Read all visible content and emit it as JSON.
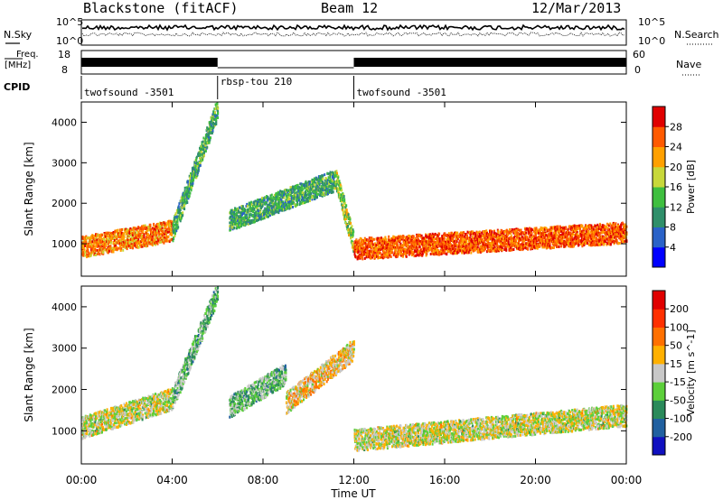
{
  "header": {
    "station": "Blackstone (fitACF)",
    "beam": "Beam 12",
    "date": "12/Mar/2013"
  },
  "strip_labels": {
    "nsky": "N.Sky",
    "nsearch": "N.Search",
    "freq_line1": "Freq.",
    "freq_line2": "[MHz]",
    "nave": "Nave",
    "cpid": "CPID",
    "noise_ticks_left": [
      "10^5",
      "10^0"
    ],
    "noise_ticks_right": [
      "10^5",
      "10^0"
    ],
    "freq_ticks": [
      "18",
      "8"
    ],
    "nave_ticks": [
      "60",
      "0"
    ]
  },
  "cpid_segments": [
    {
      "label": "twofsound -3501",
      "start_hour": 0,
      "end_hour": 6
    },
    {
      "label": "rbsp-tou 210",
      "start_hour": 6,
      "end_hour": 12
    },
    {
      "label": "twofsound -3501",
      "start_hour": 12,
      "end_hour": 24
    }
  ],
  "chart_data": [
    {
      "type": "heatmap",
      "title": "Power",
      "xlabel": "Time UT",
      "ylabel": "Slant Range [km]",
      "xlim": [
        0,
        24
      ],
      "ylim": [
        200,
        4500
      ],
      "x_ticks": [
        "00:00",
        "04:00",
        "08:00",
        "12:00",
        "16:00",
        "20:00",
        "00:00"
      ],
      "y_ticks": [
        "1000",
        "2000",
        "3000",
        "4000"
      ],
      "colorbar": {
        "label": "Power [dB]",
        "ticks": [
          "4",
          "8",
          "12",
          "16",
          "20",
          "24",
          "28"
        ],
        "range": [
          0,
          32
        ],
        "colors": [
          "#0000ff",
          "#2a62c8",
          "#2f8f6a",
          "#3fbf3f",
          "#c8d83a",
          "#ffa000",
          "#ff5a00",
          "#e00000"
        ]
      },
      "echo_bands": [
        {
          "x_start": 0,
          "x_end": 4,
          "y_from": 950,
          "y_to": 1350,
          "value": 24
        },
        {
          "x_start": 4,
          "x_end": 6,
          "y_from": 1350,
          "y_to": 4400,
          "value": 12
        },
        {
          "x_start": 6.5,
          "x_end": 11.2,
          "y_from": 1600,
          "y_to": 2600,
          "value": 12
        },
        {
          "x_start": 11.2,
          "x_end": 12,
          "y_from": 2600,
          "y_to": 1000,
          "value": 16
        },
        {
          "x_start": 12,
          "x_end": 24,
          "y_from": 900,
          "y_to": 1300,
          "value": 26
        }
      ]
    },
    {
      "type": "heatmap",
      "title": "Velocity",
      "xlabel": "Time UT",
      "ylabel": "Slant Range [km]",
      "xlim": [
        0,
        24
      ],
      "ylim": [
        200,
        4500
      ],
      "x_ticks": [
        "00:00",
        "04:00",
        "08:00",
        "12:00",
        "16:00",
        "20:00",
        "00:00"
      ],
      "y_ticks": [
        "1000",
        "2000",
        "3000",
        "4000"
      ],
      "colorbar": {
        "label": "Velocity [m s^-1]",
        "ticks": [
          "200",
          "100",
          "50",
          "15",
          "-15",
          "-50",
          "-100",
          "-200"
        ],
        "range": [
          -250,
          250
        ],
        "colors": [
          "#1010c0",
          "#2060a0",
          "#2a8a5a",
          "#5ccf3a",
          "#c8c8c8",
          "#ffb000",
          "#ff7000",
          "#ff3000",
          "#e00000"
        ]
      },
      "echo_bands": [
        {
          "x_start": 0,
          "x_end": 4,
          "y_from": 1100,
          "y_to": 1800,
          "value": 0
        },
        {
          "x_start": 4,
          "x_end": 6,
          "y_from": 1800,
          "y_to": 4400,
          "value": -60
        },
        {
          "x_start": 6.5,
          "x_end": 9,
          "y_from": 1600,
          "y_to": 2400,
          "value": -60
        },
        {
          "x_start": 9,
          "x_end": 12,
          "y_from": 1700,
          "y_to": 3000,
          "value": 40
        },
        {
          "x_start": 12,
          "x_end": 24,
          "y_from": 800,
          "y_to": 1400,
          "value": 0
        }
      ]
    }
  ]
}
